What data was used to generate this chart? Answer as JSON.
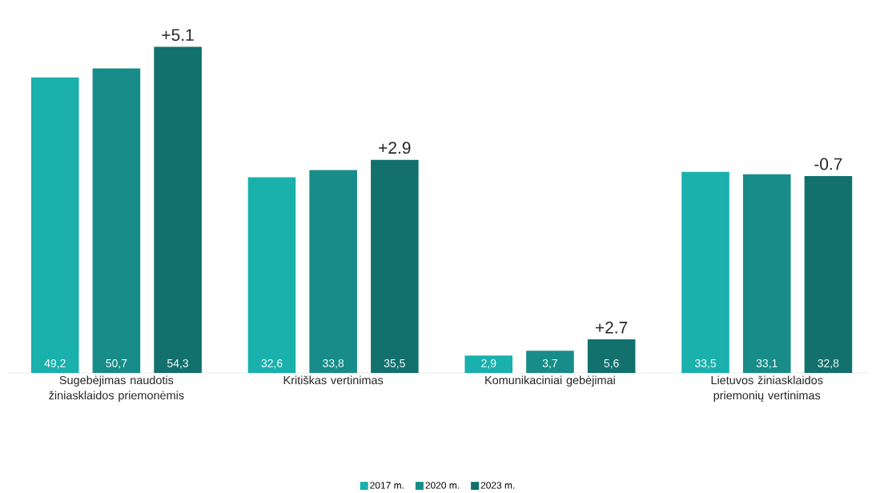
{
  "chart_data": {
    "type": "bar",
    "categories": [
      "Sugebėjimas naudotis žiniasklaidos priemonėmis",
      "Kritiškas vertinimas",
      "Komunikaciniai gebėjimai",
      "Lietuvos žiniasklaidos priemonių vertinimas"
    ],
    "series": [
      {
        "name": "2017 m.",
        "color": "#1ab0ac",
        "values": [
          49.2,
          32.6,
          2.9,
          33.5
        ],
        "value_labels": [
          "49,2",
          "32,6",
          "2,9",
          "33,5"
        ]
      },
      {
        "name": "2020 m.",
        "color": "#178c88",
        "values": [
          50.7,
          33.8,
          3.7,
          33.1
        ],
        "value_labels": [
          "50,7",
          "33,8",
          "3,7",
          "33,1"
        ]
      },
      {
        "name": "2023 m.",
        "color": "#12706d",
        "values": [
          54.3,
          35.5,
          5.6,
          32.8
        ],
        "value_labels": [
          "54,3",
          "35,5",
          "5,6",
          "32,8"
        ]
      }
    ],
    "annotations": [
      "+5.1",
      "+2.9",
      "+2.7",
      "-0.7"
    ],
    "legend": "bottom"
  }
}
